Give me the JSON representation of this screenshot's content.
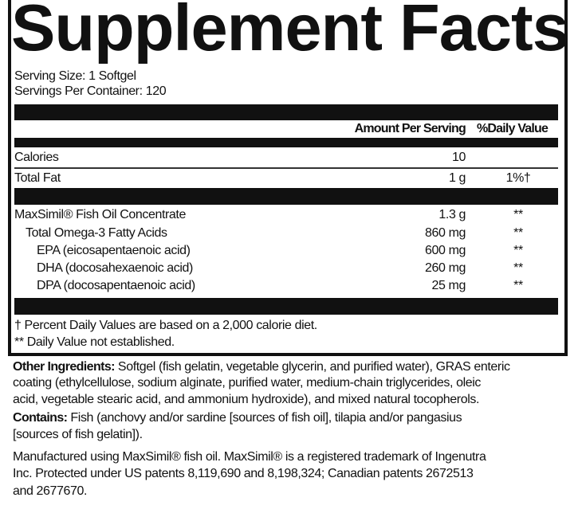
{
  "title": "Supplement Facts",
  "serving_size": "Serving Size: 1 Softgel",
  "servings_per_container": "Servings Per Container: 120",
  "header": {
    "amount": "Amount Per Serving",
    "dv": "%Daily Value"
  },
  "rows": [
    {
      "name": "Calories",
      "amount": "10",
      "dv": ""
    },
    {
      "name": "Total Fat",
      "amount": "1 g",
      "dv": "1%†"
    },
    {
      "name": "MaxSimil® Fish Oil Concentrate",
      "amount": "1.3 g",
      "dv": "**"
    },
    {
      "name": "Total Omega-3 Fatty Acids",
      "amount": "860 mg",
      "dv": "**"
    },
    {
      "name": "EPA (eicosapentaenoic acid)",
      "amount": "600 mg",
      "dv": "**"
    },
    {
      "name": "DHA (docosahexaenoic acid)",
      "amount": "260 mg",
      "dv": "**"
    },
    {
      "name": "DPA (docosapentaenoic acid)",
      "amount": "25 mg",
      "dv": "**"
    }
  ],
  "footnotes": [
    "† Percent Daily Values are based on a 2,000 calorie diet.",
    "** Daily Value not established."
  ],
  "other_ingredients": {
    "label": "Other Ingredients:",
    "lines": [
      " Softgel (fish gelatin, vegetable glycerin, and purified water), GRAS enteric",
      "coating (ethylcellulose, sodium alginate, purified water, medium-chain triglycerides, oleic",
      "acid, vegetable stearic acid, and ammonium hydroxide), and mixed natural tocopherols."
    ]
  },
  "contains": {
    "label": "Contains:",
    "lines": [
      " Fish (anchovy and/or sardine [sources of fish oil], tilapia and/or pangasius",
      "[sources of fish gelatin])."
    ]
  },
  "manufactured": [
    "Manufactured using MaxSimil® fish oil. MaxSimil® is a registered trademark of Ingenutra",
    "Inc. Protected under US patents 8,119,690 and 8,198,324; Canadian patents 2672513",
    "and 2677670."
  ]
}
